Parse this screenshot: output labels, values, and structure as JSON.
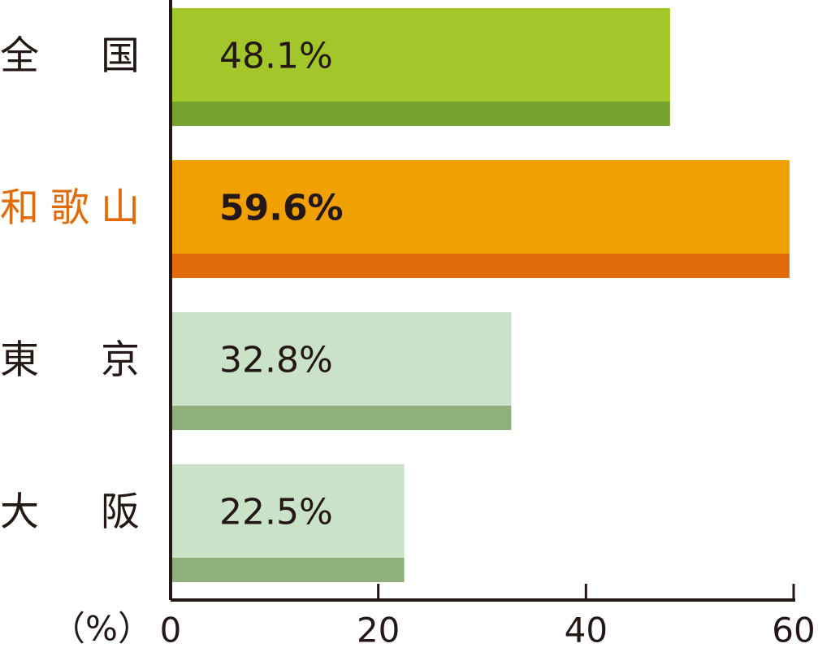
{
  "chart_data": {
    "type": "hbar",
    "categories": [
      "全　国",
      "和歌山",
      "東　京",
      "大　阪"
    ],
    "values": [
      48.1,
      59.6,
      32.8,
      22.5
    ],
    "value_labels": [
      "48.1%",
      "59.6%",
      "32.8%",
      "22.5%"
    ],
    "colors": [
      "#a3c62a",
      "#f0a000",
      "#c9e2c8",
      "#c9e2c8"
    ],
    "base_colors": [
      "#77a22f",
      "#e06b0a",
      "#8fb07c",
      "#8fb07c"
    ],
    "highlight_index": 1,
    "highlight_color": "#e06b0a",
    "xlabel": "（%）",
    "xlim": [
      0,
      60
    ],
    "xticks": [
      0,
      20,
      40,
      60
    ]
  }
}
